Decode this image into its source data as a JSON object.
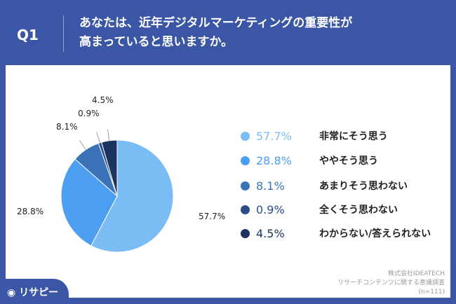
{
  "header": {
    "q": "Q1",
    "title_line1": "あなたは、近年デジタルマーケティングの重要性が",
    "title_line2": "高まっていると思いますか。"
  },
  "logo": "リサピー",
  "source": {
    "company": "株式会社IDEATECH",
    "survey": "リサーチコンテンツに関する意識調査",
    "n": "(n=111)"
  },
  "chart_data": {
    "type": "pie",
    "categories": [
      "非常にそう思う",
      "ややそう思う",
      "あまりそう思わない",
      "全くそう思わない",
      "わからない/答えられない"
    ],
    "values": [
      57.7,
      28.8,
      8.1,
      0.9,
      4.5
    ],
    "labels": [
      "57.7%",
      "28.8%",
      "8.1%",
      "0.9%",
      "4.5%"
    ],
    "colors": [
      "#7bbcf5",
      "#4c9ef0",
      "#3a73b8",
      "#2b4e8a",
      "#1c335f"
    ],
    "legend": "right"
  }
}
